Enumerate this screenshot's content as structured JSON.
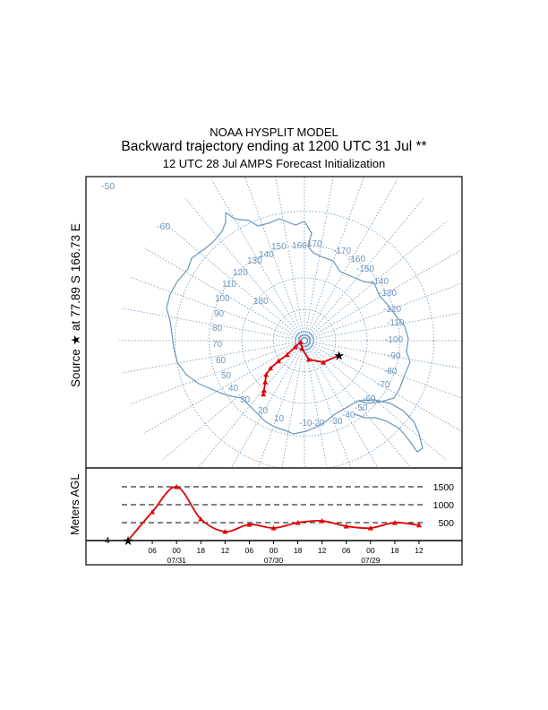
{
  "header": {
    "model": "NOAA HYSPLIT MODEL",
    "title": "Backward trajectory ending at 1200 UTC 31 Jul **",
    "subtitle": "12 UTC 28 Jul    AMPS  Forecast Initialization"
  },
  "source_label": {
    "word": "Source",
    "star": "★",
    "at": "at",
    "lat": "77.89 S",
    "lon": "166.73 E"
  },
  "map": {
    "projection": "south polar stereographic",
    "latitude_rings_deg": [
      -50,
      -60,
      -70,
      -80
    ],
    "latitude_labels": [
      "-50",
      "-60"
    ],
    "longitude_labels": [
      "10",
      "20",
      "30",
      "40",
      "50",
      "60",
      "70",
      "80",
      "90",
      "100",
      "110",
      "120",
      "130",
      "140",
      "150",
      "160",
      "170",
      "180",
      "-170",
      "-160",
      "-150",
      "-140",
      "-130",
      "-120",
      "-110",
      "-100",
      "-90",
      "-80",
      "-70",
      "-60",
      "-50",
      "-40",
      "-30",
      "-20",
      "-10"
    ],
    "colors": {
      "grid": "#6a95bb",
      "coast": "#6a95bb",
      "trajectory": "#e00000"
    }
  },
  "chart_data": {
    "type": "line",
    "title": "Backward trajectory ending at 1200 UTC 31 Jul **",
    "source": {
      "lat": -77.89,
      "lon": 166.73
    },
    "time_labels": [
      "06",
      "00",
      "18",
      "12",
      "06",
      "00",
      "18",
      "12",
      "06",
      "00",
      "18",
      "12"
    ],
    "date_labels": [
      "07/31",
      "07/30",
      "07/29"
    ],
    "trajectory": [
      {
        "hour": 0,
        "lat": -77.89,
        "lon": 166.73,
        "height_m": 4
      },
      {
        "hour": -6,
        "lat": -80.8,
        "lon": 141.0,
        "height_m": 800
      },
      {
        "hour": -12,
        "lat": -83.8,
        "lon": 113.0,
        "height_m": 1500
      },
      {
        "hour": -18,
        "lat": -87.3,
        "lon": 84.0,
        "height_m": 600
      },
      {
        "hour": -24,
        "lat": -88.7,
        "lon": 30.0,
        "height_m": 250
      },
      {
        "hour": -30,
        "lat": -86.4,
        "lon": 44.0,
        "height_m": 450
      },
      {
        "hour": -36,
        "lat": -82.8,
        "lon": 49.0,
        "height_m": 350
      },
      {
        "hour": -42,
        "lat": -79.4,
        "lon": 48.0,
        "height_m": 500
      },
      {
        "hour": -48,
        "lat": -76.0,
        "lon": 49.0,
        "height_m": 550
      },
      {
        "hour": -54,
        "lat": -73.6,
        "lon": 51.5,
        "height_m": 400
      },
      {
        "hour": -60,
        "lat": -71.8,
        "lon": 56.5,
        "height_m": 350
      },
      {
        "hour": -66,
        "lat": -69.5,
        "lon": 61.0,
        "height_m": 500
      },
      {
        "hour": -72,
        "lat": -68.5,
        "lon": 62.5,
        "height_m": 430
      }
    ],
    "height_axis": {
      "label": "Meters AGL",
      "ticks": [
        500,
        1000,
        1500
      ],
      "start_label": "4"
    }
  }
}
